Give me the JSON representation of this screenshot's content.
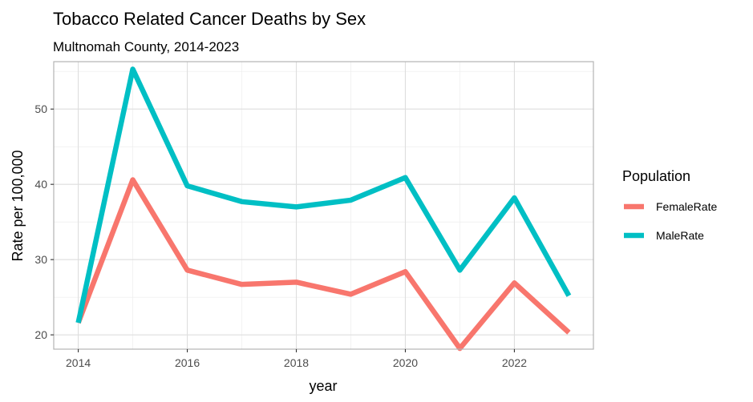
{
  "chart_data": {
    "type": "line",
    "title": "Tobacco Related Cancer Deaths by Sex",
    "subtitle": "Multnomah County, 2014-2023",
    "xlabel": "year",
    "ylabel": "Rate per 100,000",
    "x": [
      2014,
      2015,
      2016,
      2017,
      2018,
      2019,
      2020,
      2021,
      2022,
      2023
    ],
    "xlim": [
      2013.55,
      2023.45
    ],
    "ylim": [
      18.1,
      56.3
    ],
    "x_ticks": [
      2014,
      2016,
      2018,
      2020,
      2022
    ],
    "x_tick_labels": [
      "2014",
      "2016",
      "2018",
      "2020",
      "2022"
    ],
    "y_ticks": [
      20,
      30,
      40,
      50
    ],
    "y_tick_labels": [
      "20",
      "30",
      "40",
      "50"
    ],
    "grid": true,
    "legend": {
      "title": "Population",
      "position": "right"
    },
    "series": [
      {
        "name": "FemaleRate",
        "color": "#F8766D",
        "values": [
          21.6,
          40.6,
          28.6,
          26.7,
          27.0,
          25.4,
          28.4,
          18.2,
          26.9,
          20.3
        ]
      },
      {
        "name": "MaleRate",
        "color": "#00BFC4",
        "values": [
          21.6,
          55.3,
          39.8,
          37.7,
          37.0,
          37.9,
          40.9,
          28.6,
          38.2,
          25.2
        ]
      }
    ]
  }
}
